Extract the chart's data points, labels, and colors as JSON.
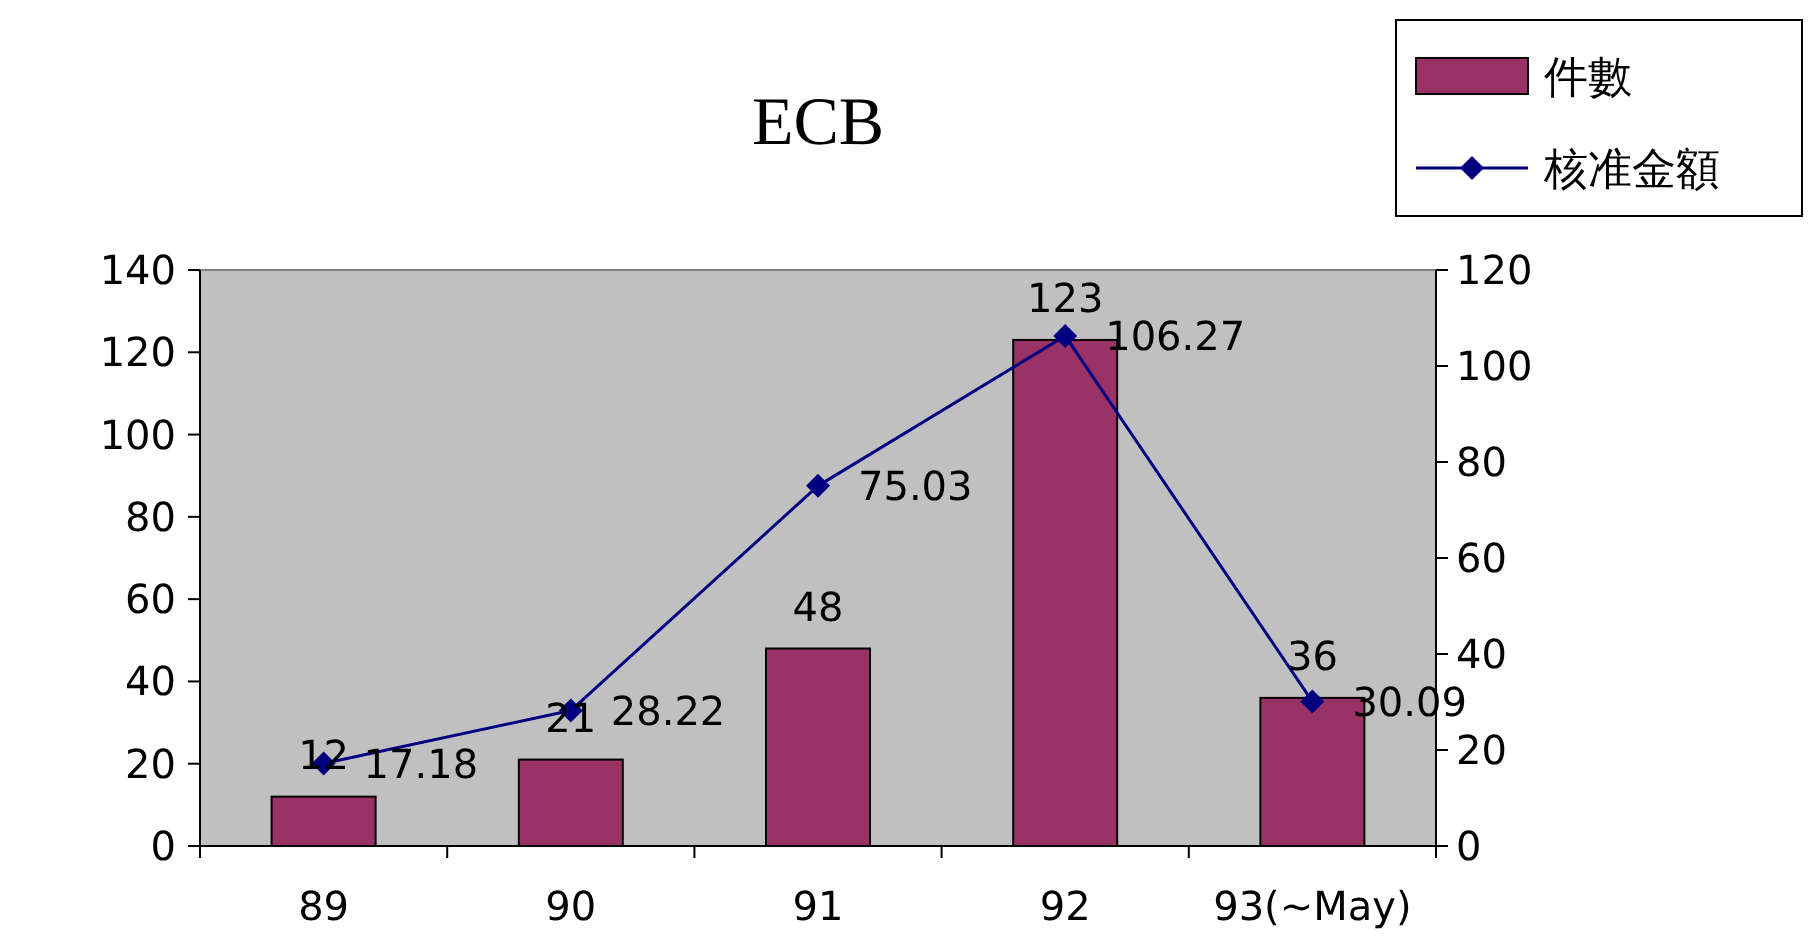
{
  "chart_data": {
    "type": "bar",
    "title": "ECB",
    "categories": [
      "89",
      "90",
      "91",
      "92",
      "93(~May)"
    ],
    "series": [
      {
        "name": "件數",
        "color": "#993366",
        "values": [
          12,
          21,
          48,
          123,
          36
        ]
      },
      {
        "name": "核准金額",
        "type": "line",
        "axis": "y2",
        "color": "#000080",
        "marker": "diamond",
        "values": [
          17.18,
          28.22,
          75.03,
          106.27,
          30.09
        ]
      }
    ],
    "ylim": [
      0,
      140
    ],
    "yticks": [
      0,
      20,
      40,
      60,
      80,
      100,
      120,
      140
    ],
    "y2lim": [
      0,
      120
    ],
    "y2ticks": [
      0,
      20,
      40,
      60,
      80,
      100,
      120
    ],
    "data_labels": true,
    "legend": "top right",
    "grid": false
  }
}
